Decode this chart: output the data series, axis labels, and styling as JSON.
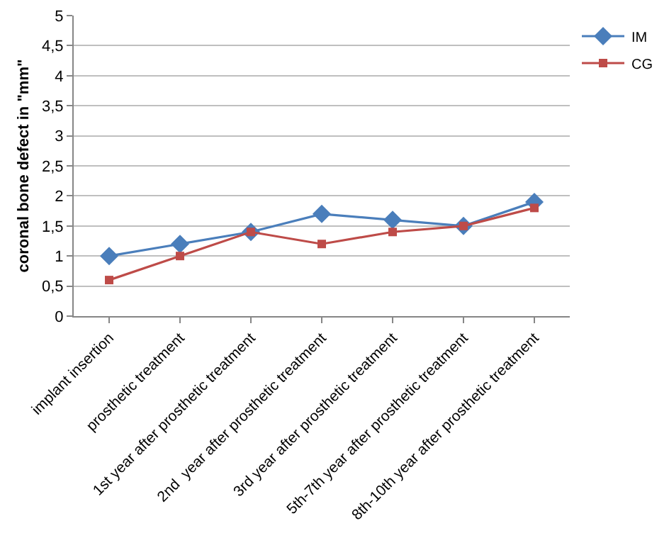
{
  "chart_data": {
    "type": "line",
    "ylabel": "coronal bone defect in \"mm\"",
    "categories": [
      "implant insertion",
      "prosthetic treatment",
      "1st year after prosthetic treatment",
      "2nd  year after prosthetic treatment",
      "3rd year after prosthetic treatment",
      "5th-7th year after prosthetic treatment",
      "8th-10th year after prosthetic treatment"
    ],
    "series": [
      {
        "name": "IM",
        "color": "#4a7ebb",
        "marker": "diamond",
        "values": [
          1.0,
          1.2,
          1.4,
          1.7,
          1.6,
          1.5,
          1.9
        ]
      },
      {
        "name": "CG",
        "color": "#be4b48",
        "marker": "square",
        "values": [
          0.6,
          1.0,
          1.4,
          1.2,
          1.4,
          1.5,
          1.8
        ]
      }
    ],
    "ylim": [
      0,
      5
    ],
    "yticks": [
      0,
      {
        "value": 0.5,
        "label": "0,5"
      },
      1,
      {
        "value": 1.5,
        "label": "1,5"
      },
      2,
      {
        "value": 2.5,
        "label": "2,5"
      },
      3,
      {
        "value": 3.5,
        "label": "3,5"
      },
      4,
      {
        "value": 4.5,
        "label": "4,5"
      },
      5
    ],
    "grid": "y",
    "legend": "top right",
    "line_style": "solid"
  }
}
